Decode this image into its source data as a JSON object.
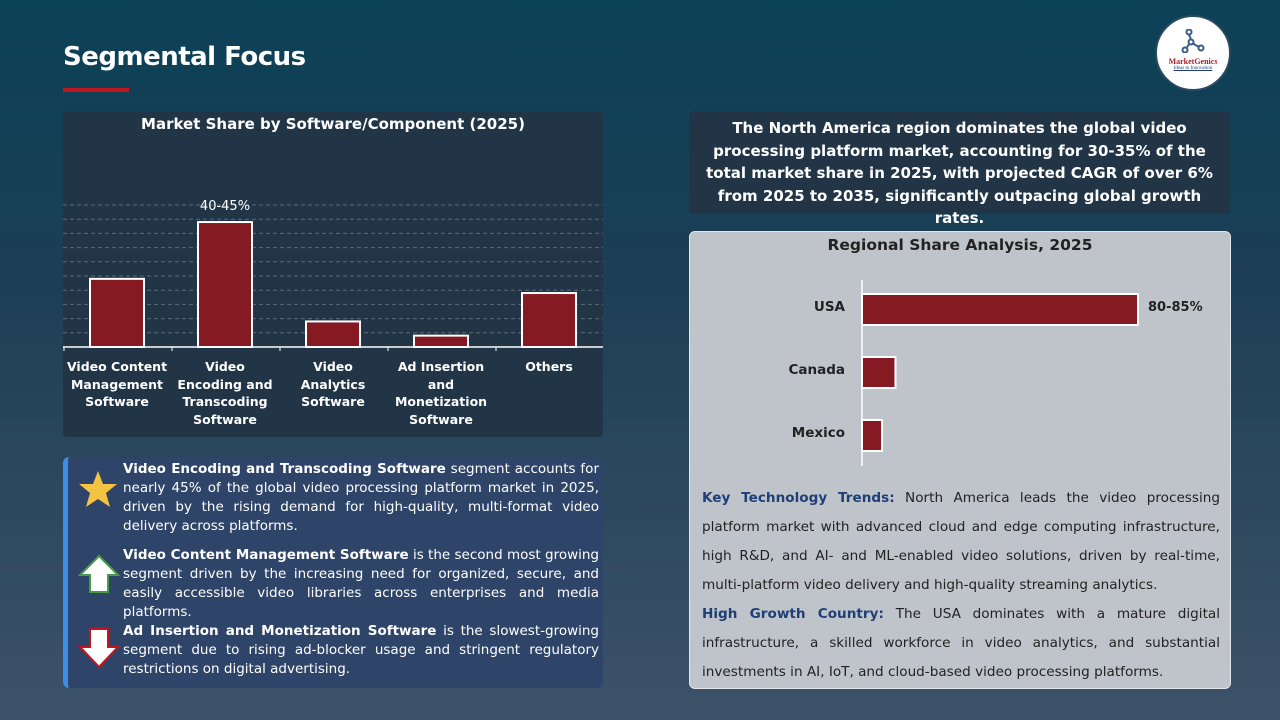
{
  "header": {
    "title": "Segmental Focus",
    "logo_text": "MarketGenics",
    "logo_tagline": "Ideas to Innovation"
  },
  "colors": {
    "bar": "#861a23",
    "accent": "#c0161f",
    "key_text": "#1f3f76"
  },
  "chart_data": [
    {
      "type": "bar",
      "title": "Market Share by Software/Component (2025)",
      "categories": [
        "Video Content Management Software",
        "Video Encoding and Transcoding Software",
        "Video Analytics Software",
        "Ad Insertion and Monetization Software",
        "Others"
      ],
      "values": [
        24,
        44,
        9,
        4,
        19
      ],
      "data_labels": [
        "",
        "40-45%",
        "",
        "",
        ""
      ],
      "ylim": [
        0,
        50
      ],
      "grid": true,
      "unit": "%"
    },
    {
      "type": "bar",
      "orientation": "horizontal",
      "title": "Regional Share Analysis, 2025",
      "categories": [
        "USA",
        "Canada",
        "Mexico"
      ],
      "values": [
        82.5,
        10,
        6
      ],
      "data_labels": [
        "80-85%",
        "",
        ""
      ],
      "xlim": [
        0,
        100
      ],
      "grid": false,
      "unit": "%"
    }
  ],
  "summary": "The North America region dominates the global video processing platform market, accounting for 30-35% of the total market share in 2025, with projected CAGR of over 6% from 2025 to 2035, significantly outpacing global growth rates.",
  "insights": [
    {
      "icon": "star-icon",
      "bold": "Video Encoding and Transcoding Software",
      "text": " segment accounts for nearly 45% of the global video processing platform market in 2025, driven by the rising demand for high-quality, multi-format video delivery across platforms."
    },
    {
      "icon": "arrow-up-icon",
      "bold": "Video Content Management Software",
      "text": " is the second most growing segment driven by the increasing need for organized, secure, and easily accessible video libraries across enterprises and media platforms."
    },
    {
      "icon": "arrow-down-icon",
      "bold": "Ad Insertion and Monetization Software",
      "text": " is the slowest-growing segment due to rising ad-blocker usage and stringent regulatory restrictions on digital advertising."
    }
  ],
  "trends": [
    {
      "key": "Key Technology Trends:",
      "text": " North America leads the video processing platform market with advanced cloud and edge computing infrastructure, high R&D, and AI- and ML-enabled video solutions, driven by real-time, multi-platform video delivery and high-quality streaming analytics."
    },
    {
      "key": "High Growth Country:",
      "text": " The USA dominates with a mature digital infrastructure, a skilled workforce in video analytics, and substantial investments in AI, IoT, and cloud-based video processing platforms."
    }
  ]
}
